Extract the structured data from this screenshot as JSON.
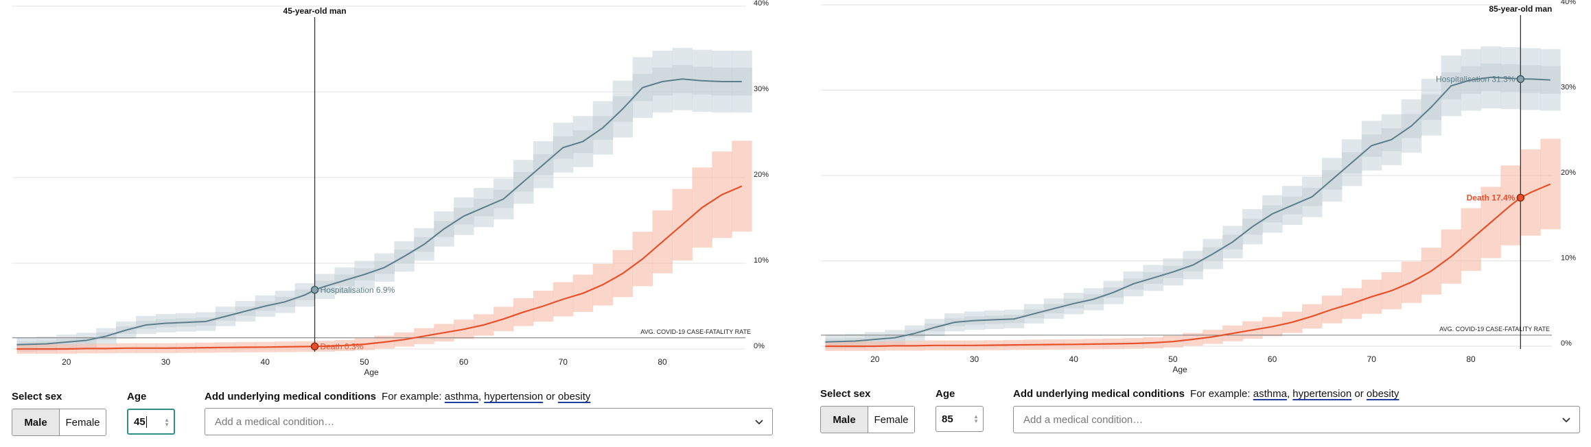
{
  "chart_data": [
    {
      "type": "area",
      "title": "45-year-old man",
      "xlabel": "Age",
      "ylabel": "",
      "x_ticks": [
        "20",
        "30",
        "40",
        "50",
        "60",
        "70",
        "80"
      ],
      "y_ticks": [
        "0%",
        "10%",
        "20%",
        "30%",
        "40%"
      ],
      "xlim": [
        15,
        88
      ],
      "ylim": [
        0,
        40
      ],
      "reference_line": {
        "label": "AVG. COVID-19 CASE-FATALITY RATE",
        "value": 1.3
      },
      "marker_age": 45,
      "series": [
        {
          "name": "Hospitalisation",
          "color": "#5b7d89",
          "x": [
            15,
            18,
            20,
            22,
            24,
            26,
            28,
            30,
            32,
            34,
            36,
            38,
            40,
            42,
            44,
            45,
            46,
            48,
            50,
            52,
            54,
            56,
            58,
            60,
            62,
            64,
            66,
            68,
            70,
            72,
            74,
            76,
            78,
            80,
            82,
            84,
            86,
            88
          ],
          "values": [
            0.5,
            0.6,
            0.8,
            1.0,
            1.5,
            2.2,
            2.8,
            3.0,
            3.1,
            3.2,
            3.8,
            4.4,
            5.0,
            5.5,
            6.3,
            6.9,
            7.3,
            8.0,
            8.7,
            9.5,
            10.8,
            12.2,
            14.0,
            15.5,
            16.5,
            17.5,
            19.5,
            21.5,
            23.5,
            24.2,
            25.8,
            28.0,
            30.5,
            31.2,
            31.5,
            31.3,
            31.2,
            31.2
          ]
        },
        {
          "name": "Death",
          "color": "#e8502a",
          "x": [
            15,
            18,
            20,
            22,
            24,
            26,
            28,
            30,
            32,
            34,
            36,
            38,
            40,
            42,
            44,
            45,
            46,
            48,
            50,
            52,
            54,
            56,
            58,
            60,
            62,
            64,
            66,
            68,
            70,
            72,
            74,
            76,
            78,
            80,
            82,
            84,
            86,
            88
          ],
          "values": [
            0.0,
            0.0,
            0.0,
            0.05,
            0.05,
            0.1,
            0.1,
            0.1,
            0.12,
            0.15,
            0.18,
            0.2,
            0.22,
            0.25,
            0.28,
            0.3,
            0.32,
            0.4,
            0.55,
            0.8,
            1.1,
            1.5,
            1.9,
            2.3,
            2.8,
            3.5,
            4.3,
            5.0,
            5.8,
            6.5,
            7.5,
            8.8,
            10.5,
            12.5,
            14.5,
            16.5,
            18.0,
            19.0
          ]
        }
      ],
      "annotations": [
        {
          "series": "Hospitalisation",
          "text": "Hospitalisation 6.9%"
        },
        {
          "series": "Death",
          "text": "Death 0.3%"
        }
      ]
    },
    {
      "type": "area",
      "title": "85-year-old man",
      "xlabel": "Age",
      "ylabel": "",
      "x_ticks": [
        "20",
        "30",
        "40",
        "50",
        "60",
        "70",
        "80"
      ],
      "y_ticks": [
        "0%",
        "10%",
        "20%",
        "30%",
        "40%"
      ],
      "xlim": [
        15,
        88
      ],
      "ylim": [
        0,
        40
      ],
      "reference_line": {
        "label": "AVG. COVID-19 CASE-FATALITY RATE",
        "value": 1.3
      },
      "marker_age": 85,
      "series": [
        {
          "name": "Hospitalisation",
          "color": "#5b7d89",
          "x": [
            15,
            18,
            20,
            22,
            24,
            26,
            28,
            30,
            32,
            34,
            36,
            38,
            40,
            42,
            44,
            46,
            48,
            50,
            52,
            54,
            56,
            58,
            60,
            62,
            64,
            66,
            68,
            70,
            72,
            74,
            76,
            78,
            80,
            82,
            84,
            85,
            86,
            88
          ],
          "values": [
            0.5,
            0.6,
            0.8,
            1.0,
            1.5,
            2.2,
            2.8,
            3.0,
            3.1,
            3.2,
            3.8,
            4.4,
            5.0,
            5.5,
            6.3,
            7.3,
            8.0,
            8.7,
            9.5,
            10.8,
            12.2,
            14.0,
            15.5,
            16.5,
            17.5,
            19.5,
            21.5,
            23.5,
            24.2,
            25.8,
            28.0,
            30.5,
            31.2,
            31.5,
            31.4,
            31.3,
            31.3,
            31.2
          ]
        },
        {
          "name": "Death",
          "color": "#e8502a",
          "x": [
            15,
            18,
            20,
            22,
            24,
            26,
            28,
            30,
            32,
            34,
            36,
            38,
            40,
            42,
            44,
            46,
            48,
            50,
            52,
            54,
            56,
            58,
            60,
            62,
            64,
            66,
            68,
            70,
            72,
            74,
            76,
            78,
            80,
            82,
            84,
            85,
            86,
            88
          ],
          "values": [
            0.0,
            0.0,
            0.0,
            0.05,
            0.05,
            0.1,
            0.1,
            0.1,
            0.12,
            0.15,
            0.18,
            0.2,
            0.22,
            0.25,
            0.28,
            0.32,
            0.4,
            0.55,
            0.8,
            1.1,
            1.5,
            1.9,
            2.3,
            2.8,
            3.5,
            4.3,
            5.0,
            5.8,
            6.5,
            7.5,
            8.8,
            10.5,
            12.5,
            14.5,
            16.5,
            17.4,
            18.0,
            19.0
          ]
        }
      ],
      "annotations": [
        {
          "series": "Hospitalisation",
          "text": "Hospitalisation 31.3%"
        },
        {
          "series": "Death",
          "text": "Death 17.4%"
        }
      ]
    }
  ],
  "colors": {
    "hosp_band": "#c7d3d8",
    "death_band": "#f6b9a6",
    "grid": "#e2e2e2",
    "focus": "#2f8f86",
    "link_underline": "#1f3c99"
  },
  "controls": [
    {
      "sex_label": "Select sex",
      "sex_options": [
        "Male",
        "Female"
      ],
      "sex_selected": "Male",
      "age_label": "Age",
      "age_value": "45",
      "conditions_label": "Add underlying medical conditions",
      "example_prefix": "For example:",
      "example_1": "asthma",
      "sep_1": ",",
      "example_2": "hypertension",
      "sep_2": "or",
      "example_3": "obesity",
      "placeholder": "Add a medical condition…"
    },
    {
      "sex_label": "Select sex",
      "sex_options": [
        "Male",
        "Female"
      ],
      "sex_selected": "Male",
      "age_label": "Age",
      "age_value": "85",
      "conditions_label": "Add underlying medical conditions",
      "example_prefix": "For example:",
      "example_1": "asthma",
      "sep_1": ",",
      "example_2": "hypertension",
      "sep_2": "or",
      "example_3": "obesity",
      "placeholder": "Add a medical condition…"
    }
  ]
}
